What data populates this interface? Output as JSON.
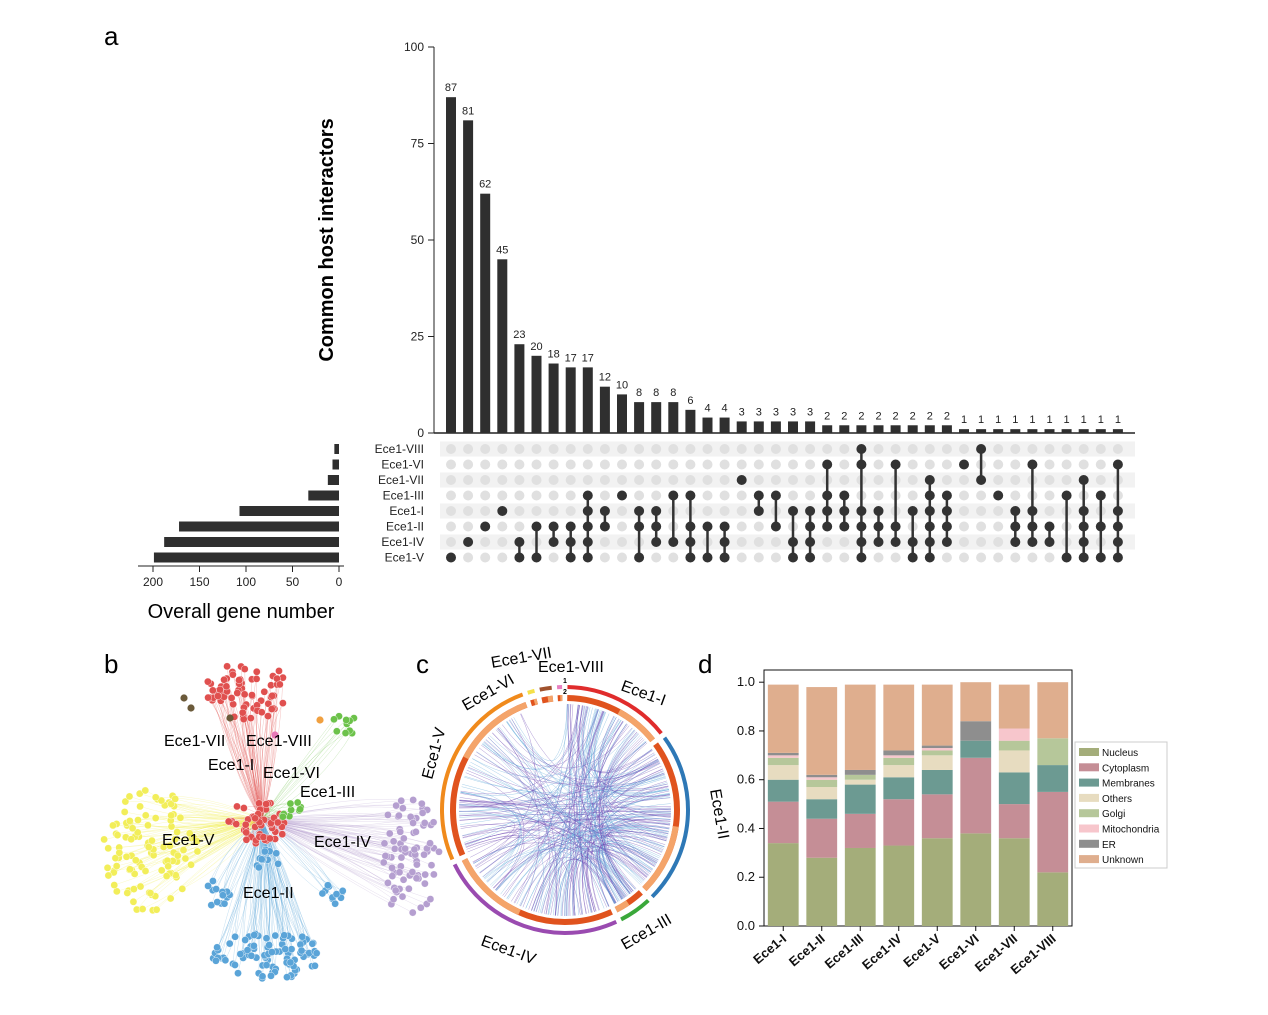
{
  "panels": {
    "a": "a",
    "b": "b",
    "c": "c",
    "d": "d"
  },
  "chart_data": [
    {
      "type": "bar",
      "panel": "a",
      "chart": "upset-intersections",
      "ylabel": "Common host interactors",
      "ylim": [
        0,
        100
      ],
      "yticks": [
        0,
        25,
        50,
        75,
        100
      ],
      "values": [
        87,
        81,
        62,
        45,
        23,
        20,
        18,
        17,
        17,
        12,
        10,
        8,
        8,
        8,
        6,
        4,
        4,
        3,
        3,
        3,
        3,
        3,
        2,
        2,
        2,
        2,
        2,
        2,
        2,
        2,
        1,
        1,
        1,
        1,
        1,
        1,
        1,
        1,
        1,
        1
      ],
      "sets": [
        "Ece1-VIII",
        "Ece1-VI",
        "Ece1-VII",
        "Ece1-III",
        "Ece1-I",
        "Ece1-II",
        "Ece1-IV",
        "Ece1-V"
      ],
      "memberships": [
        [
          "Ece1-V"
        ],
        [
          "Ece1-IV"
        ],
        [
          "Ece1-II"
        ],
        [
          "Ece1-I"
        ],
        [
          "Ece1-IV",
          "Ece1-V"
        ],
        [
          "Ece1-II",
          "Ece1-V"
        ],
        [
          "Ece1-II",
          "Ece1-IV"
        ],
        [
          "Ece1-II",
          "Ece1-IV",
          "Ece1-V"
        ],
        [
          "Ece1-III",
          "Ece1-I",
          "Ece1-II",
          "Ece1-IV",
          "Ece1-V"
        ],
        [
          "Ece1-I",
          "Ece1-II"
        ],
        [
          "Ece1-III"
        ],
        [
          "Ece1-I",
          "Ece1-II",
          "Ece1-V"
        ],
        [
          "Ece1-I",
          "Ece1-II",
          "Ece1-IV"
        ],
        [
          "Ece1-III",
          "Ece1-IV"
        ],
        [
          "Ece1-III",
          "Ece1-II",
          "Ece1-IV",
          "Ece1-V"
        ],
        [
          "Ece1-II",
          "Ece1-V"
        ],
        [
          "Ece1-II",
          "Ece1-IV",
          "Ece1-V"
        ],
        [
          "Ece1-VII"
        ],
        [
          "Ece1-III",
          "Ece1-I"
        ],
        [
          "Ece1-III",
          "Ece1-II"
        ],
        [
          "Ece1-I",
          "Ece1-IV",
          "Ece1-V"
        ],
        [
          "Ece1-I",
          "Ece1-II",
          "Ece1-IV",
          "Ece1-V"
        ],
        [
          "Ece1-VI",
          "Ece1-III",
          "Ece1-I",
          "Ece1-II"
        ],
        [
          "Ece1-III",
          "Ece1-I",
          "Ece1-II"
        ],
        [
          "Ece1-VIII",
          "Ece1-VI",
          "Ece1-I",
          "Ece1-II",
          "Ece1-IV",
          "Ece1-V"
        ],
        [
          "Ece1-I",
          "Ece1-II",
          "Ece1-IV"
        ],
        [
          "Ece1-VI",
          "Ece1-II",
          "Ece1-IV"
        ],
        [
          "Ece1-I",
          "Ece1-IV",
          "Ece1-V"
        ],
        [
          "Ece1-VII",
          "Ece1-III",
          "Ece1-I",
          "Ece1-II",
          "Ece1-IV",
          "Ece1-V"
        ],
        [
          "Ece1-III",
          "Ece1-I",
          "Ece1-II",
          "Ece1-IV"
        ],
        [
          "Ece1-VI"
        ],
        [
          "Ece1-VIII",
          "Ece1-VII"
        ],
        [
          "Ece1-III"
        ],
        [
          "Ece1-I",
          "Ece1-II",
          "Ece1-IV"
        ],
        [
          "Ece1-VI",
          "Ece1-I",
          "Ece1-II",
          "Ece1-IV"
        ],
        [
          "Ece1-II",
          "Ece1-IV"
        ],
        [
          "Ece1-III",
          "Ece1-V"
        ],
        [
          "Ece1-VII",
          "Ece1-I",
          "Ece1-II",
          "Ece1-IV",
          "Ece1-V"
        ],
        [
          "Ece1-III",
          "Ece1-II",
          "Ece1-V"
        ],
        [
          "Ece1-VI",
          "Ece1-I",
          "Ece1-II",
          "Ece1-IV",
          "Ece1-V"
        ]
      ]
    },
    {
      "type": "bar",
      "panel": "a",
      "chart": "set-sizes",
      "orientation": "horizontal",
      "xlabel": "Overall gene number",
      "xticks": [
        0,
        50,
        100,
        150,
        200
      ],
      "categories": [
        "Ece1-VIII",
        "Ece1-VI",
        "Ece1-VII",
        "Ece1-III",
        "Ece1-I",
        "Ece1-II",
        "Ece1-IV",
        "Ece1-V"
      ],
      "values": [
        5,
        7,
        12,
        33,
        107,
        172,
        188,
        199
      ]
    },
    {
      "type": "network",
      "panel": "b",
      "nodes": [
        "Ece1-VII",
        "Ece1-VIII",
        "Ece1-I",
        "Ece1-VI",
        "Ece1-III",
        "Ece1-V",
        "Ece1-IV",
        "Ece1-II"
      ],
      "colors": {
        "Ece1-I": "#e0504f",
        "Ece1-II": "#5aa4d8",
        "Ece1-III": "#6cc24a",
        "Ece1-IV": "#b59fd0",
        "Ece1-V": "#f2ee5a",
        "Ece1-VI": "#e878b8",
        "Ece1-VII": "#6b5a3a",
        "Ece1-VIII": "#f0a040"
      }
    },
    {
      "type": "chord",
      "panel": "c",
      "sectors": [
        "Ece1-I",
        "Ece1-II",
        "Ece1-III",
        "Ece1-IV",
        "Ece1-V",
        "Ece1-VI",
        "Ece1-VII",
        "Ece1-VIII"
      ],
      "sector_values": [
        107,
        172,
        33,
        188,
        199,
        7,
        12,
        5
      ],
      "sector_colors": [
        "#e02c2c",
        "#2e78b6",
        "#3aa83a",
        "#9a4bb0",
        "#f08a1c",
        "#f5e04a",
        "#a0522d",
        "#e87fc0"
      ],
      "marks": [
        "1",
        "2"
      ]
    },
    {
      "type": "bar",
      "panel": "d",
      "stacked": true,
      "categories": [
        "Ece1-I",
        "Ece1-II",
        "Ece1-III",
        "Ece1-IV",
        "Ece1-V",
        "Ece1-VI",
        "Ece1-VII",
        "Ece1-VIII"
      ],
      "ylim": [
        0,
        1.05
      ],
      "yticks": [
        "0.0",
        "0.2",
        "0.4",
        "0.6",
        "0.8",
        "1.0"
      ],
      "series": [
        {
          "name": "Nucleus",
          "color": "#a4ad7a",
          "values": [
            0.34,
            0.28,
            0.32,
            0.33,
            0.36,
            0.38,
            0.36,
            0.22
          ]
        },
        {
          "name": "Cytoplasm",
          "color": "#c58e96",
          "values": [
            0.17,
            0.16,
            0.14,
            0.19,
            0.18,
            0.31,
            0.14,
            0.33
          ]
        },
        {
          "name": "Membranes",
          "color": "#6c9a92",
          "values": [
            0.09,
            0.08,
            0.12,
            0.09,
            0.1,
            0.07,
            0.13,
            0.11
          ]
        },
        {
          "name": "Others",
          "color": "#e7dcc0",
          "values": [
            0.06,
            0.05,
            0.02,
            0.05,
            0.06,
            0.0,
            0.09,
            0.0
          ]
        },
        {
          "name": "Golgi",
          "color": "#b6c79a",
          "values": [
            0.03,
            0.03,
            0.02,
            0.03,
            0.02,
            0.0,
            0.04,
            0.11
          ]
        },
        {
          "name": "Mitochondria",
          "color": "#f7c6cc",
          "values": [
            0.01,
            0.01,
            0.0,
            0.01,
            0.01,
            0.0,
            0.05,
            0.0
          ]
        },
        {
          "name": "ER",
          "color": "#8e8e8e",
          "values": [
            0.01,
            0.01,
            0.02,
            0.02,
            0.01,
            0.08,
            0.0,
            0.0
          ]
        },
        {
          "name": "Unknown",
          "color": "#dfae8e",
          "values": [
            0.28,
            0.36,
            0.35,
            0.27,
            0.25,
            0.16,
            0.18,
            0.23
          ]
        }
      ]
    }
  ]
}
